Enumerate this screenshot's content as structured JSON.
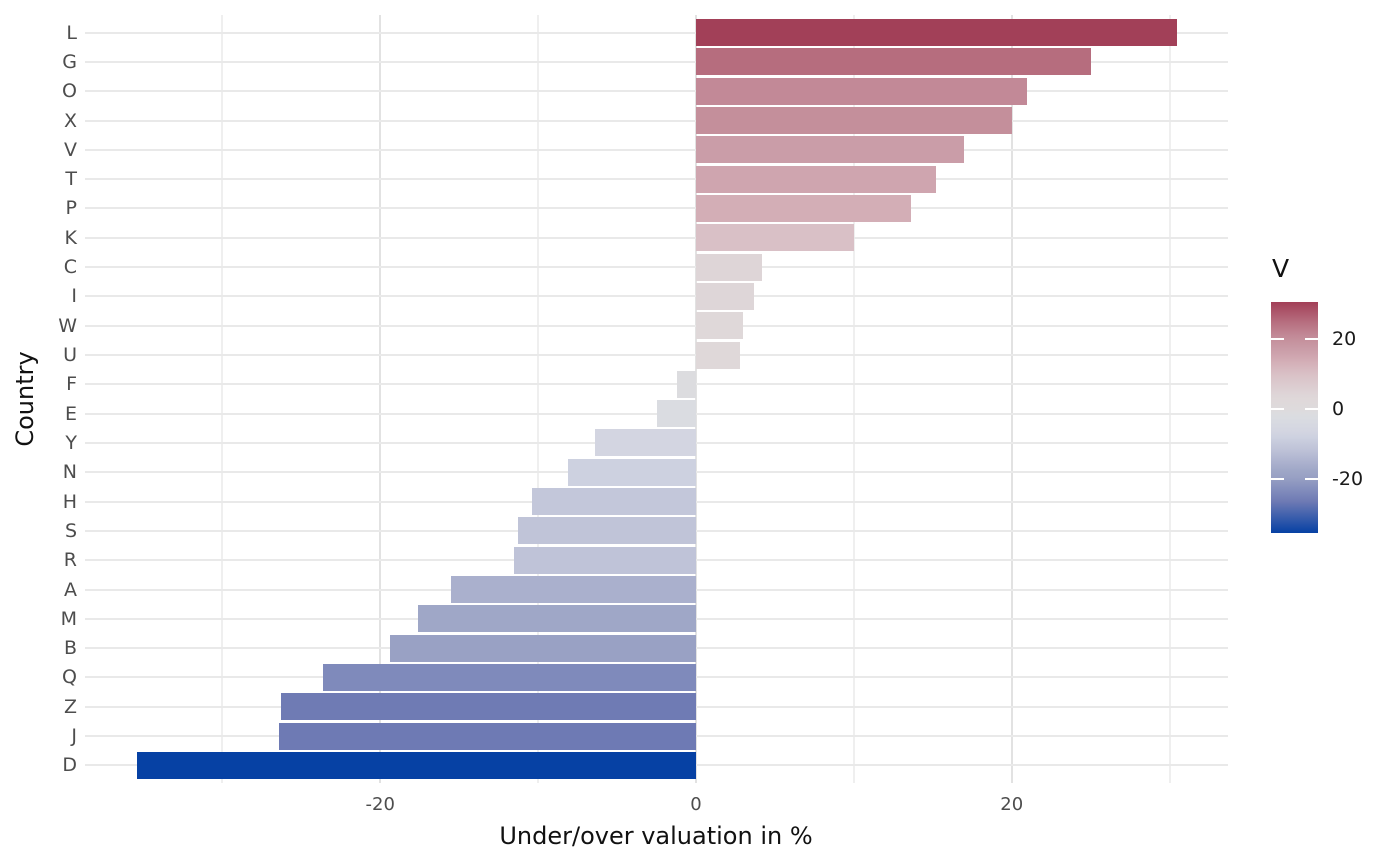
{
  "chart_data": {
    "type": "bar",
    "orientation": "horizontal",
    "title": "",
    "xlabel": "Under/over valuation in %",
    "ylabel": "Country",
    "categories": [
      "L",
      "G",
      "O",
      "X",
      "V",
      "T",
      "P",
      "K",
      "C",
      "I",
      "W",
      "U",
      "F",
      "E",
      "Y",
      "N",
      "H",
      "S",
      "R",
      "A",
      "M",
      "B",
      "Q",
      "Z",
      "J",
      "D"
    ],
    "values": [
      30.5,
      25.0,
      21.0,
      20.0,
      17.0,
      15.2,
      13.6,
      10.0,
      4.2,
      3.7,
      3.0,
      2.8,
      -1.2,
      -2.5,
      -6.4,
      -8.1,
      -10.4,
      -11.3,
      -11.5,
      -15.5,
      -17.6,
      -19.4,
      -23.6,
      -26.3,
      -26.4,
      -35.4
    ],
    "xlim": [
      -38.7,
      33.7
    ],
    "x_major_ticks": [
      -20,
      0,
      20
    ],
    "x_major_tick_labels": [
      "-20",
      "0",
      "20"
    ],
    "x_minor_ticks": [
      -30,
      -10,
      10,
      30
    ],
    "grid": true,
    "bar_fill_mapped_to": "V",
    "legend": {
      "title": "V",
      "position": "right",
      "range": [
        -35.4,
        30.6
      ],
      "ticks": [
        20,
        0,
        -20
      ],
      "tick_labels": [
        "20",
        "0",
        "-20"
      ]
    },
    "color_scale": [
      [
        -35.4,
        "#0641a4"
      ],
      [
        -26.4,
        "#6e7ab4"
      ],
      [
        -23.6,
        "#7f8abb"
      ],
      [
        -19.4,
        "#99a1c4"
      ],
      [
        -17.6,
        "#9fa7c7"
      ],
      [
        -15.5,
        "#aab0cd"
      ],
      [
        -11.5,
        "#bfc3d8"
      ],
      [
        -10.4,
        "#c3c7da"
      ],
      [
        -8.1,
        "#cdd1e0"
      ],
      [
        -6.4,
        "#d3d5e1"
      ],
      [
        -2.5,
        "#dadce1"
      ],
      [
        -1.2,
        "#dcdcdf"
      ],
      [
        0.0,
        "#dedadc"
      ],
      [
        2.8,
        "#dfd8d9"
      ],
      [
        4.2,
        "#ded5d7"
      ],
      [
        10.0,
        "#d9c0c6"
      ],
      [
        13.6,
        "#d3aeb6"
      ],
      [
        15.2,
        "#cfa5af"
      ],
      [
        17.0,
        "#ca9da8"
      ],
      [
        20.0,
        "#c48f9b"
      ],
      [
        21.0,
        "#c28997"
      ],
      [
        25.0,
        "#b66d7e"
      ],
      [
        30.6,
        "#a23f57"
      ]
    ]
  },
  "colors": {
    "background": "#ffffff",
    "grid_major": "#e2e2e2",
    "grid_minor": "#efefef",
    "grid_row": "#e9e9e9",
    "axis_text": "#4d4d4d",
    "title_text": "#111111",
    "legend_text": "#1a1a1a"
  }
}
